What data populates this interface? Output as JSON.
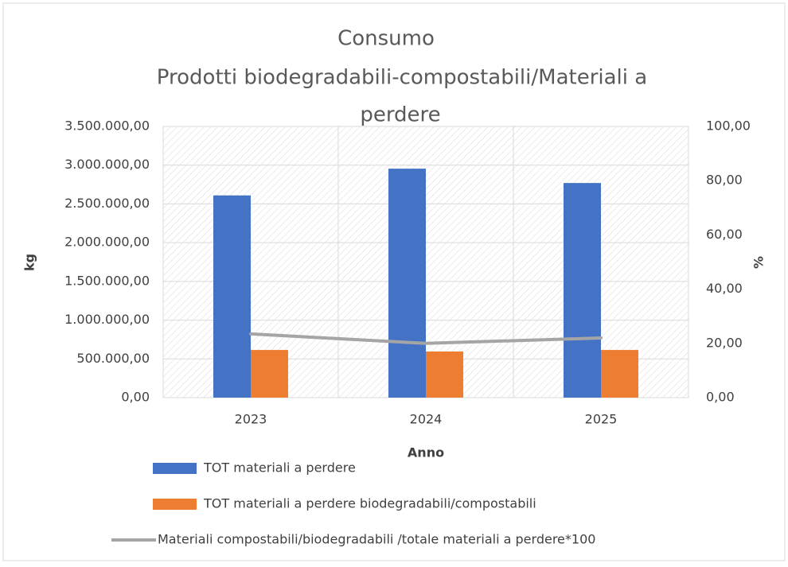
{
  "chart_data": {
    "type": "bar",
    "title": [
      "Consumo",
      "Prodotti biodegradabili-compostabili/Materiali a",
      "perdere"
    ],
    "xlabel": "Anno",
    "ylabel": "kg",
    "y2label": "%",
    "categories": [
      "2023",
      "2024",
      "2025"
    ],
    "series": [
      {
        "name": "TOT materiali a perdere",
        "color": "#4472c4",
        "values": [
          2610000,
          2955000,
          2770000
        ]
      },
      {
        "name": "TOT materiali a perdere biodegradabili/compostabili",
        "color": "#ed7d31",
        "values": [
          615000,
          595000,
          615000
        ]
      },
      {
        "name": "Materiali compostabili/biodegradabili /totale materiali a perdere*100",
        "color": "#a5a5a5",
        "type": "line",
        "axis": "y2",
        "values": [
          23.5,
          20,
          22
        ]
      }
    ],
    "ylim": [
      0,
      3500000
    ],
    "yticks": [
      {
        "value": 0,
        "label": "0,00"
      },
      {
        "value": 500000,
        "label": "500.000,00"
      },
      {
        "value": 1000000,
        "label": "1.000.000,00"
      },
      {
        "value": 1500000,
        "label": "1.500.000,00"
      },
      {
        "value": 2000000,
        "label": "2.000.000,00"
      },
      {
        "value": 2500000,
        "label": "2.500.000,00"
      },
      {
        "value": 3000000,
        "label": "3.000.000,00"
      },
      {
        "value": 3500000,
        "label": "3.500.000,00"
      }
    ],
    "y2lim": [
      0,
      100
    ],
    "y2ticks": [
      {
        "value": 0,
        "label": "0,00"
      },
      {
        "value": 20,
        "label": "20,00"
      },
      {
        "value": 40,
        "label": "40,00"
      },
      {
        "value": 60,
        "label": "60,00"
      },
      {
        "value": 80,
        "label": "80,00"
      },
      {
        "value": 100,
        "label": "100,00"
      }
    ],
    "grid": true,
    "legend": "bottom"
  }
}
